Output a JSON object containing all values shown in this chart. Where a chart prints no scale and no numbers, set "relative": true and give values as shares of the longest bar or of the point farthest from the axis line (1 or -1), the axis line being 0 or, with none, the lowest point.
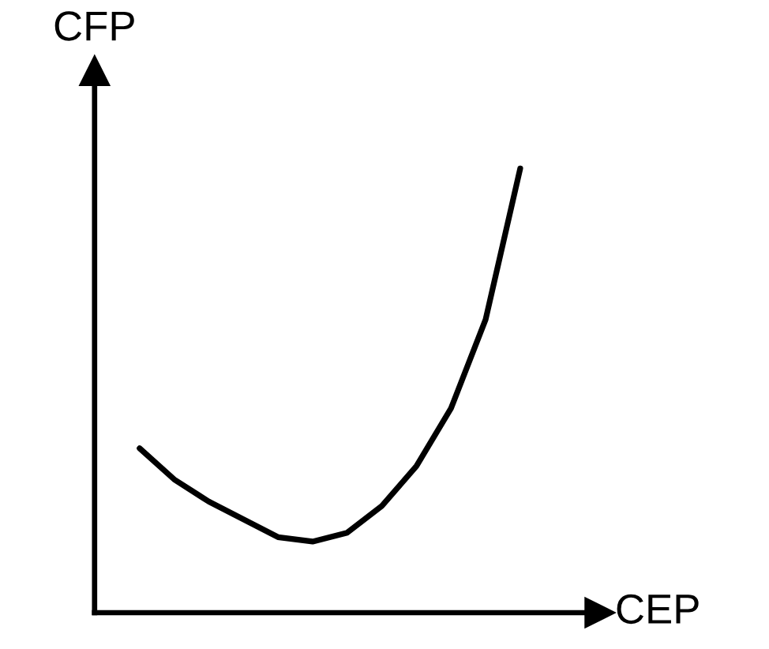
{
  "chart_data": {
    "type": "line",
    "xlabel": "CEP",
    "ylabel": "CFP",
    "relative": true,
    "categories": [
      null,
      null,
      null,
      null,
      null,
      null,
      null,
      null,
      null,
      null,
      null,
      null
    ],
    "series": [
      {
        "color": "#000000",
        "values": [
          0.37,
          0.3,
          0.25,
          0.21,
          0.17,
          0.16,
          0.18,
          0.24,
          0.33,
          0.46,
          0.66,
          1.0
        ]
      }
    ]
  }
}
